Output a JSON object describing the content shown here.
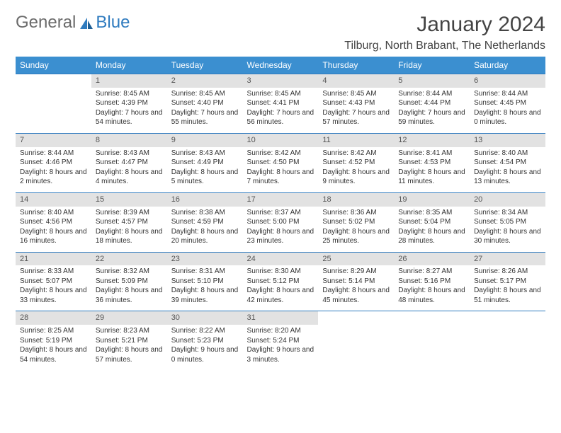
{
  "brand": {
    "part1": "General",
    "part2": "Blue"
  },
  "title": "January 2024",
  "location": "Tilburg, North Brabant, The Netherlands",
  "colors": {
    "header_bg": "#3b8fd0",
    "header_text": "#ffffff",
    "daynum_bg": "#e2e2e2",
    "border": "#2f7bbf",
    "text": "#333333",
    "logo_gray": "#6b6b6b",
    "logo_blue": "#2f7bbf"
  },
  "weekdays": [
    "Sunday",
    "Monday",
    "Tuesday",
    "Wednesday",
    "Thursday",
    "Friday",
    "Saturday"
  ],
  "weeks": [
    [
      null,
      {
        "n": "1",
        "sr": "8:45 AM",
        "ss": "4:39 PM",
        "dl": "7 hours and 54 minutes."
      },
      {
        "n": "2",
        "sr": "8:45 AM",
        "ss": "4:40 PM",
        "dl": "7 hours and 55 minutes."
      },
      {
        "n": "3",
        "sr": "8:45 AM",
        "ss": "4:41 PM",
        "dl": "7 hours and 56 minutes."
      },
      {
        "n": "4",
        "sr": "8:45 AM",
        "ss": "4:43 PM",
        "dl": "7 hours and 57 minutes."
      },
      {
        "n": "5",
        "sr": "8:44 AM",
        "ss": "4:44 PM",
        "dl": "7 hours and 59 minutes."
      },
      {
        "n": "6",
        "sr": "8:44 AM",
        "ss": "4:45 PM",
        "dl": "8 hours and 0 minutes."
      }
    ],
    [
      {
        "n": "7",
        "sr": "8:44 AM",
        "ss": "4:46 PM",
        "dl": "8 hours and 2 minutes."
      },
      {
        "n": "8",
        "sr": "8:43 AM",
        "ss": "4:47 PM",
        "dl": "8 hours and 4 minutes."
      },
      {
        "n": "9",
        "sr": "8:43 AM",
        "ss": "4:49 PM",
        "dl": "8 hours and 5 minutes."
      },
      {
        "n": "10",
        "sr": "8:42 AM",
        "ss": "4:50 PM",
        "dl": "8 hours and 7 minutes."
      },
      {
        "n": "11",
        "sr": "8:42 AM",
        "ss": "4:52 PM",
        "dl": "8 hours and 9 minutes."
      },
      {
        "n": "12",
        "sr": "8:41 AM",
        "ss": "4:53 PM",
        "dl": "8 hours and 11 minutes."
      },
      {
        "n": "13",
        "sr": "8:40 AM",
        "ss": "4:54 PM",
        "dl": "8 hours and 13 minutes."
      }
    ],
    [
      {
        "n": "14",
        "sr": "8:40 AM",
        "ss": "4:56 PM",
        "dl": "8 hours and 16 minutes."
      },
      {
        "n": "15",
        "sr": "8:39 AM",
        "ss": "4:57 PM",
        "dl": "8 hours and 18 minutes."
      },
      {
        "n": "16",
        "sr": "8:38 AM",
        "ss": "4:59 PM",
        "dl": "8 hours and 20 minutes."
      },
      {
        "n": "17",
        "sr": "8:37 AM",
        "ss": "5:00 PM",
        "dl": "8 hours and 23 minutes."
      },
      {
        "n": "18",
        "sr": "8:36 AM",
        "ss": "5:02 PM",
        "dl": "8 hours and 25 minutes."
      },
      {
        "n": "19",
        "sr": "8:35 AM",
        "ss": "5:04 PM",
        "dl": "8 hours and 28 minutes."
      },
      {
        "n": "20",
        "sr": "8:34 AM",
        "ss": "5:05 PM",
        "dl": "8 hours and 30 minutes."
      }
    ],
    [
      {
        "n": "21",
        "sr": "8:33 AM",
        "ss": "5:07 PM",
        "dl": "8 hours and 33 minutes."
      },
      {
        "n": "22",
        "sr": "8:32 AM",
        "ss": "5:09 PM",
        "dl": "8 hours and 36 minutes."
      },
      {
        "n": "23",
        "sr": "8:31 AM",
        "ss": "5:10 PM",
        "dl": "8 hours and 39 minutes."
      },
      {
        "n": "24",
        "sr": "8:30 AM",
        "ss": "5:12 PM",
        "dl": "8 hours and 42 minutes."
      },
      {
        "n": "25",
        "sr": "8:29 AM",
        "ss": "5:14 PM",
        "dl": "8 hours and 45 minutes."
      },
      {
        "n": "26",
        "sr": "8:27 AM",
        "ss": "5:16 PM",
        "dl": "8 hours and 48 minutes."
      },
      {
        "n": "27",
        "sr": "8:26 AM",
        "ss": "5:17 PM",
        "dl": "8 hours and 51 minutes."
      }
    ],
    [
      {
        "n": "28",
        "sr": "8:25 AM",
        "ss": "5:19 PM",
        "dl": "8 hours and 54 minutes."
      },
      {
        "n": "29",
        "sr": "8:23 AM",
        "ss": "5:21 PM",
        "dl": "8 hours and 57 minutes."
      },
      {
        "n": "30",
        "sr": "8:22 AM",
        "ss": "5:23 PM",
        "dl": "9 hours and 0 minutes."
      },
      {
        "n": "31",
        "sr": "8:20 AM",
        "ss": "5:24 PM",
        "dl": "9 hours and 3 minutes."
      },
      null,
      null,
      null
    ]
  ],
  "labels": {
    "sunrise": "Sunrise:",
    "sunset": "Sunset:",
    "daylight": "Daylight:"
  }
}
